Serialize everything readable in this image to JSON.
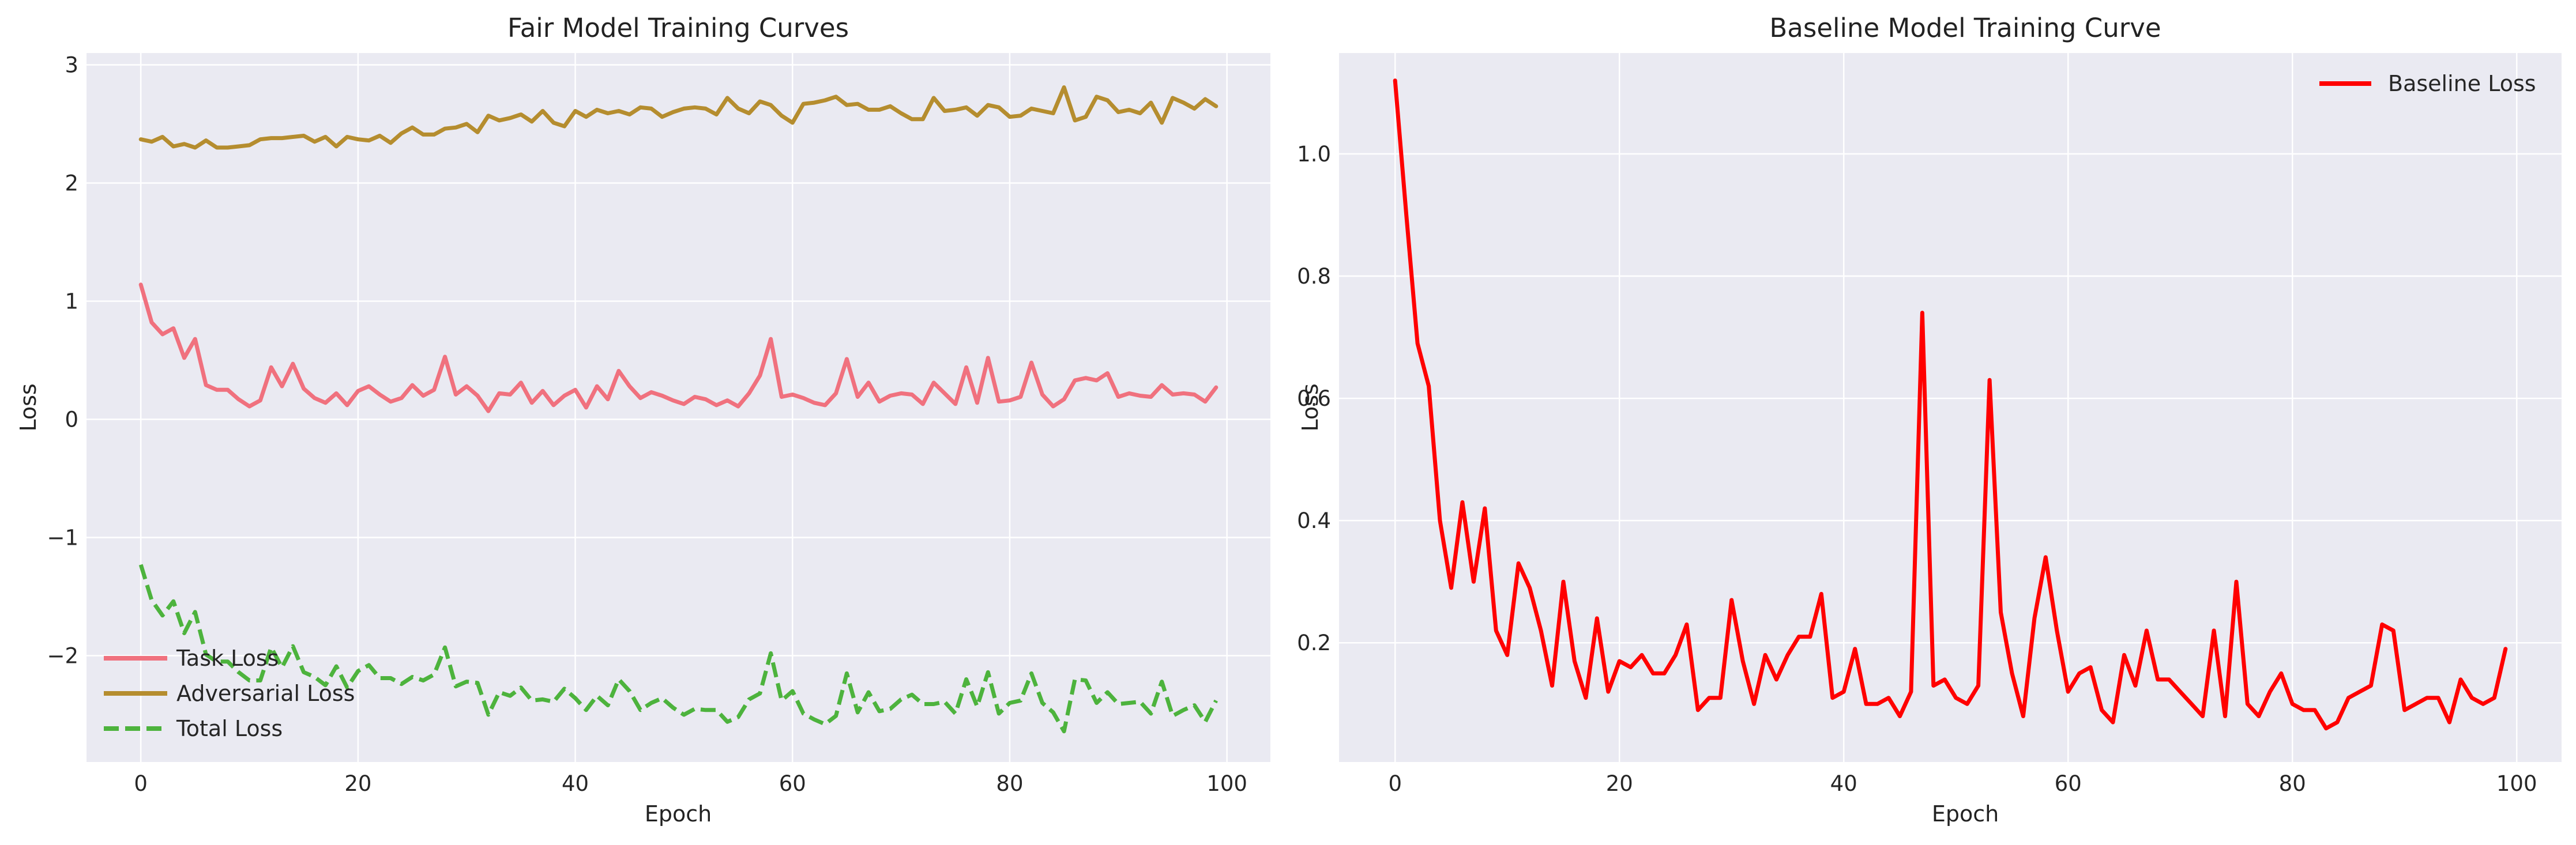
{
  "chart_data": [
    {
      "type": "line",
      "title": "Fair Model Training Curves",
      "xlabel": "Epoch",
      "ylabel": "Loss",
      "xlim": [
        -5,
        104
      ],
      "ylim": [
        -2.9,
        3.1
      ],
      "xticks": [
        0,
        20,
        40,
        60,
        80,
        100
      ],
      "yticks": [
        -2,
        -1,
        0,
        1,
        2,
        3
      ],
      "ytick_labels": [
        "−2",
        "−1",
        "0",
        "1",
        "2",
        "3"
      ],
      "grid": true,
      "legend_position": "lower-left",
      "x": [
        0,
        1,
        2,
        3,
        4,
        5,
        6,
        7,
        8,
        9,
        10,
        11,
        12,
        13,
        14,
        15,
        16,
        17,
        18,
        19,
        20,
        21,
        22,
        23,
        24,
        25,
        26,
        27,
        28,
        29,
        30,
        31,
        32,
        33,
        34,
        35,
        36,
        37,
        38,
        39,
        40,
        41,
        42,
        43,
        44,
        45,
        46,
        47,
        48,
        49,
        50,
        51,
        52,
        53,
        54,
        55,
        56,
        57,
        58,
        59,
        60,
        61,
        62,
        63,
        64,
        65,
        66,
        67,
        68,
        69,
        70,
        71,
        72,
        73,
        74,
        75,
        76,
        77,
        78,
        79,
        80,
        81,
        82,
        83,
        84,
        85,
        86,
        87,
        88,
        89,
        90,
        91,
        92,
        93,
        94,
        95,
        96,
        97,
        98,
        99
      ],
      "series": [
        {
          "name": "Task Loss",
          "color": "#f0717e",
          "style": "solid",
          "values": [
            1.14,
            0.82,
            0.72,
            0.77,
            0.52,
            0.68,
            0.29,
            0.25,
            0.25,
            0.17,
            0.11,
            0.16,
            0.44,
            0.28,
            0.47,
            0.26,
            0.18,
            0.14,
            0.22,
            0.12,
            0.24,
            0.28,
            0.21,
            0.15,
            0.18,
            0.29,
            0.2,
            0.25,
            0.53,
            0.21,
            0.28,
            0.2,
            0.07,
            0.22,
            0.21,
            0.31,
            0.14,
            0.24,
            0.12,
            0.2,
            0.25,
            0.1,
            0.28,
            0.17,
            0.41,
            0.28,
            0.18,
            0.23,
            0.2,
            0.16,
            0.13,
            0.19,
            0.17,
            0.12,
            0.16,
            0.11,
            0.22,
            0.37,
            0.68,
            0.19,
            0.21,
            0.18,
            0.14,
            0.12,
            0.22,
            0.51,
            0.19,
            0.31,
            0.15,
            0.2,
            0.22,
            0.21,
            0.13,
            0.31,
            0.22,
            0.13,
            0.44,
            0.14,
            0.52,
            0.15,
            0.16,
            0.19,
            0.48,
            0.21,
            0.11,
            0.17,
            0.33,
            0.35,
            0.33,
            0.39,
            0.19,
            0.22,
            0.2,
            0.19,
            0.29,
            0.21,
            0.22,
            0.21,
            0.15,
            0.27
          ]
        },
        {
          "name": "Adversarial Loss",
          "color": "#b58d2f",
          "style": "solid",
          "values": [
            2.37,
            2.35,
            2.39,
            2.31,
            2.33,
            2.3,
            2.36,
            2.3,
            2.3,
            2.31,
            2.32,
            2.37,
            2.38,
            2.38,
            2.39,
            2.4,
            2.35,
            2.39,
            2.31,
            2.39,
            2.37,
            2.36,
            2.4,
            2.34,
            2.42,
            2.47,
            2.41,
            2.41,
            2.46,
            2.47,
            2.5,
            2.43,
            2.57,
            2.53,
            2.55,
            2.58,
            2.52,
            2.61,
            2.51,
            2.48,
            2.61,
            2.56,
            2.62,
            2.59,
            2.61,
            2.58,
            2.64,
            2.63,
            2.56,
            2.6,
            2.63,
            2.64,
            2.63,
            2.58,
            2.72,
            2.63,
            2.59,
            2.69,
            2.66,
            2.57,
            2.51,
            2.67,
            2.68,
            2.7,
            2.73,
            2.66,
            2.67,
            2.62,
            2.62,
            2.65,
            2.59,
            2.54,
            2.54,
            2.72,
            2.61,
            2.62,
            2.64,
            2.57,
            2.66,
            2.64,
            2.56,
            2.57,
            2.63,
            2.61,
            2.59,
            2.81,
            2.53,
            2.56,
            2.73,
            2.7,
            2.6,
            2.62,
            2.59,
            2.68,
            2.51,
            2.72,
            2.68,
            2.63,
            2.71,
            2.65
          ]
        },
        {
          "name": "Total Loss",
          "color": "#4db33d",
          "style": "dashed",
          "values": [
            -1.23,
            -1.53,
            -1.66,
            -1.54,
            -1.81,
            -1.63,
            -1.99,
            -2.05,
            -2.05,
            -2.14,
            -2.21,
            -2.21,
            -1.93,
            -2.1,
            -1.92,
            -2.14,
            -2.18,
            -2.25,
            -2.09,
            -2.27,
            -2.13,
            -2.08,
            -2.19,
            -2.19,
            -2.24,
            -2.18,
            -2.21,
            -2.16,
            -1.93,
            -2.26,
            -2.22,
            -2.23,
            -2.5,
            -2.31,
            -2.34,
            -2.27,
            -2.38,
            -2.37,
            -2.39,
            -2.28,
            -2.36,
            -2.46,
            -2.34,
            -2.42,
            -2.2,
            -2.3,
            -2.46,
            -2.4,
            -2.36,
            -2.44,
            -2.5,
            -2.45,
            -2.46,
            -2.46,
            -2.56,
            -2.52,
            -2.37,
            -2.32,
            -1.98,
            -2.38,
            -2.3,
            -2.49,
            -2.54,
            -2.58,
            -2.51,
            -2.15,
            -2.48,
            -2.31,
            -2.47,
            -2.45,
            -2.37,
            -2.33,
            -2.41,
            -2.41,
            -2.39,
            -2.49,
            -2.2,
            -2.43,
            -2.14,
            -2.49,
            -2.4,
            -2.38,
            -2.15,
            -2.4,
            -2.48,
            -2.64,
            -2.2,
            -2.21,
            -2.4,
            -2.31,
            -2.41,
            -2.4,
            -2.39,
            -2.49,
            -2.22,
            -2.51,
            -2.46,
            -2.42,
            -2.56,
            -2.38
          ]
        }
      ]
    },
    {
      "type": "line",
      "title": "Baseline Model Training Curve",
      "xlabel": "Epoch",
      "ylabel": "Loss",
      "xlim": [
        -5,
        104
      ],
      "ylim": [
        0.005,
        1.165
      ],
      "xticks": [
        0,
        20,
        40,
        60,
        80,
        100
      ],
      "yticks": [
        0.2,
        0.4,
        0.6,
        0.8,
        1.0
      ],
      "ytick_labels": [
        "0.2",
        "0.4",
        "0.6",
        "0.8",
        "1.0"
      ],
      "grid": true,
      "legend_position": "top-right",
      "x": [
        0,
        1,
        2,
        3,
        4,
        5,
        6,
        7,
        8,
        9,
        10,
        11,
        12,
        13,
        14,
        15,
        16,
        17,
        18,
        19,
        20,
        21,
        22,
        23,
        24,
        25,
        26,
        27,
        28,
        29,
        30,
        31,
        32,
        33,
        34,
        35,
        36,
        37,
        38,
        39,
        40,
        41,
        42,
        43,
        44,
        45,
        46,
        47,
        48,
        49,
        50,
        51,
        52,
        53,
        54,
        55,
        56,
        57,
        58,
        59,
        60,
        61,
        62,
        63,
        64,
        65,
        66,
        67,
        68,
        69,
        70,
        71,
        72,
        73,
        74,
        75,
        76,
        77,
        78,
        79,
        80,
        81,
        82,
        83,
        84,
        85,
        86,
        87,
        88,
        89,
        90,
        91,
        92,
        93,
        94,
        95,
        96,
        97,
        98,
        99
      ],
      "series": [
        {
          "name": "Baseline Loss",
          "color": "#ff0000",
          "style": "solid",
          "values": [
            1.12,
            0.9,
            0.69,
            0.62,
            0.4,
            0.29,
            0.43,
            0.3,
            0.42,
            0.22,
            0.18,
            0.33,
            0.29,
            0.22,
            0.13,
            0.3,
            0.17,
            0.11,
            0.24,
            0.12,
            0.17,
            0.16,
            0.18,
            0.15,
            0.15,
            0.18,
            0.23,
            0.09,
            0.11,
            0.11,
            0.27,
            0.17,
            0.1,
            0.18,
            0.14,
            0.18,
            0.21,
            0.21,
            0.28,
            0.11,
            0.12,
            0.19,
            0.1,
            0.1,
            0.11,
            0.08,
            0.12,
            0.74,
            0.13,
            0.14,
            0.11,
            0.1,
            0.13,
            0.63,
            0.25,
            0.15,
            0.08,
            0.24,
            0.34,
            0.22,
            0.12,
            0.15,
            0.16,
            0.09,
            0.07,
            0.18,
            0.13,
            0.22,
            0.14,
            0.14,
            0.12,
            0.1,
            0.08,
            0.22,
            0.08,
            0.3,
            0.1,
            0.08,
            0.12,
            0.15,
            0.1,
            0.09,
            0.09,
            0.06,
            0.07,
            0.11,
            0.12,
            0.13,
            0.23,
            0.22,
            0.09,
            0.1,
            0.11,
            0.11,
            0.07,
            0.14,
            0.11,
            0.1,
            0.11,
            0.19
          ]
        }
      ]
    }
  ]
}
